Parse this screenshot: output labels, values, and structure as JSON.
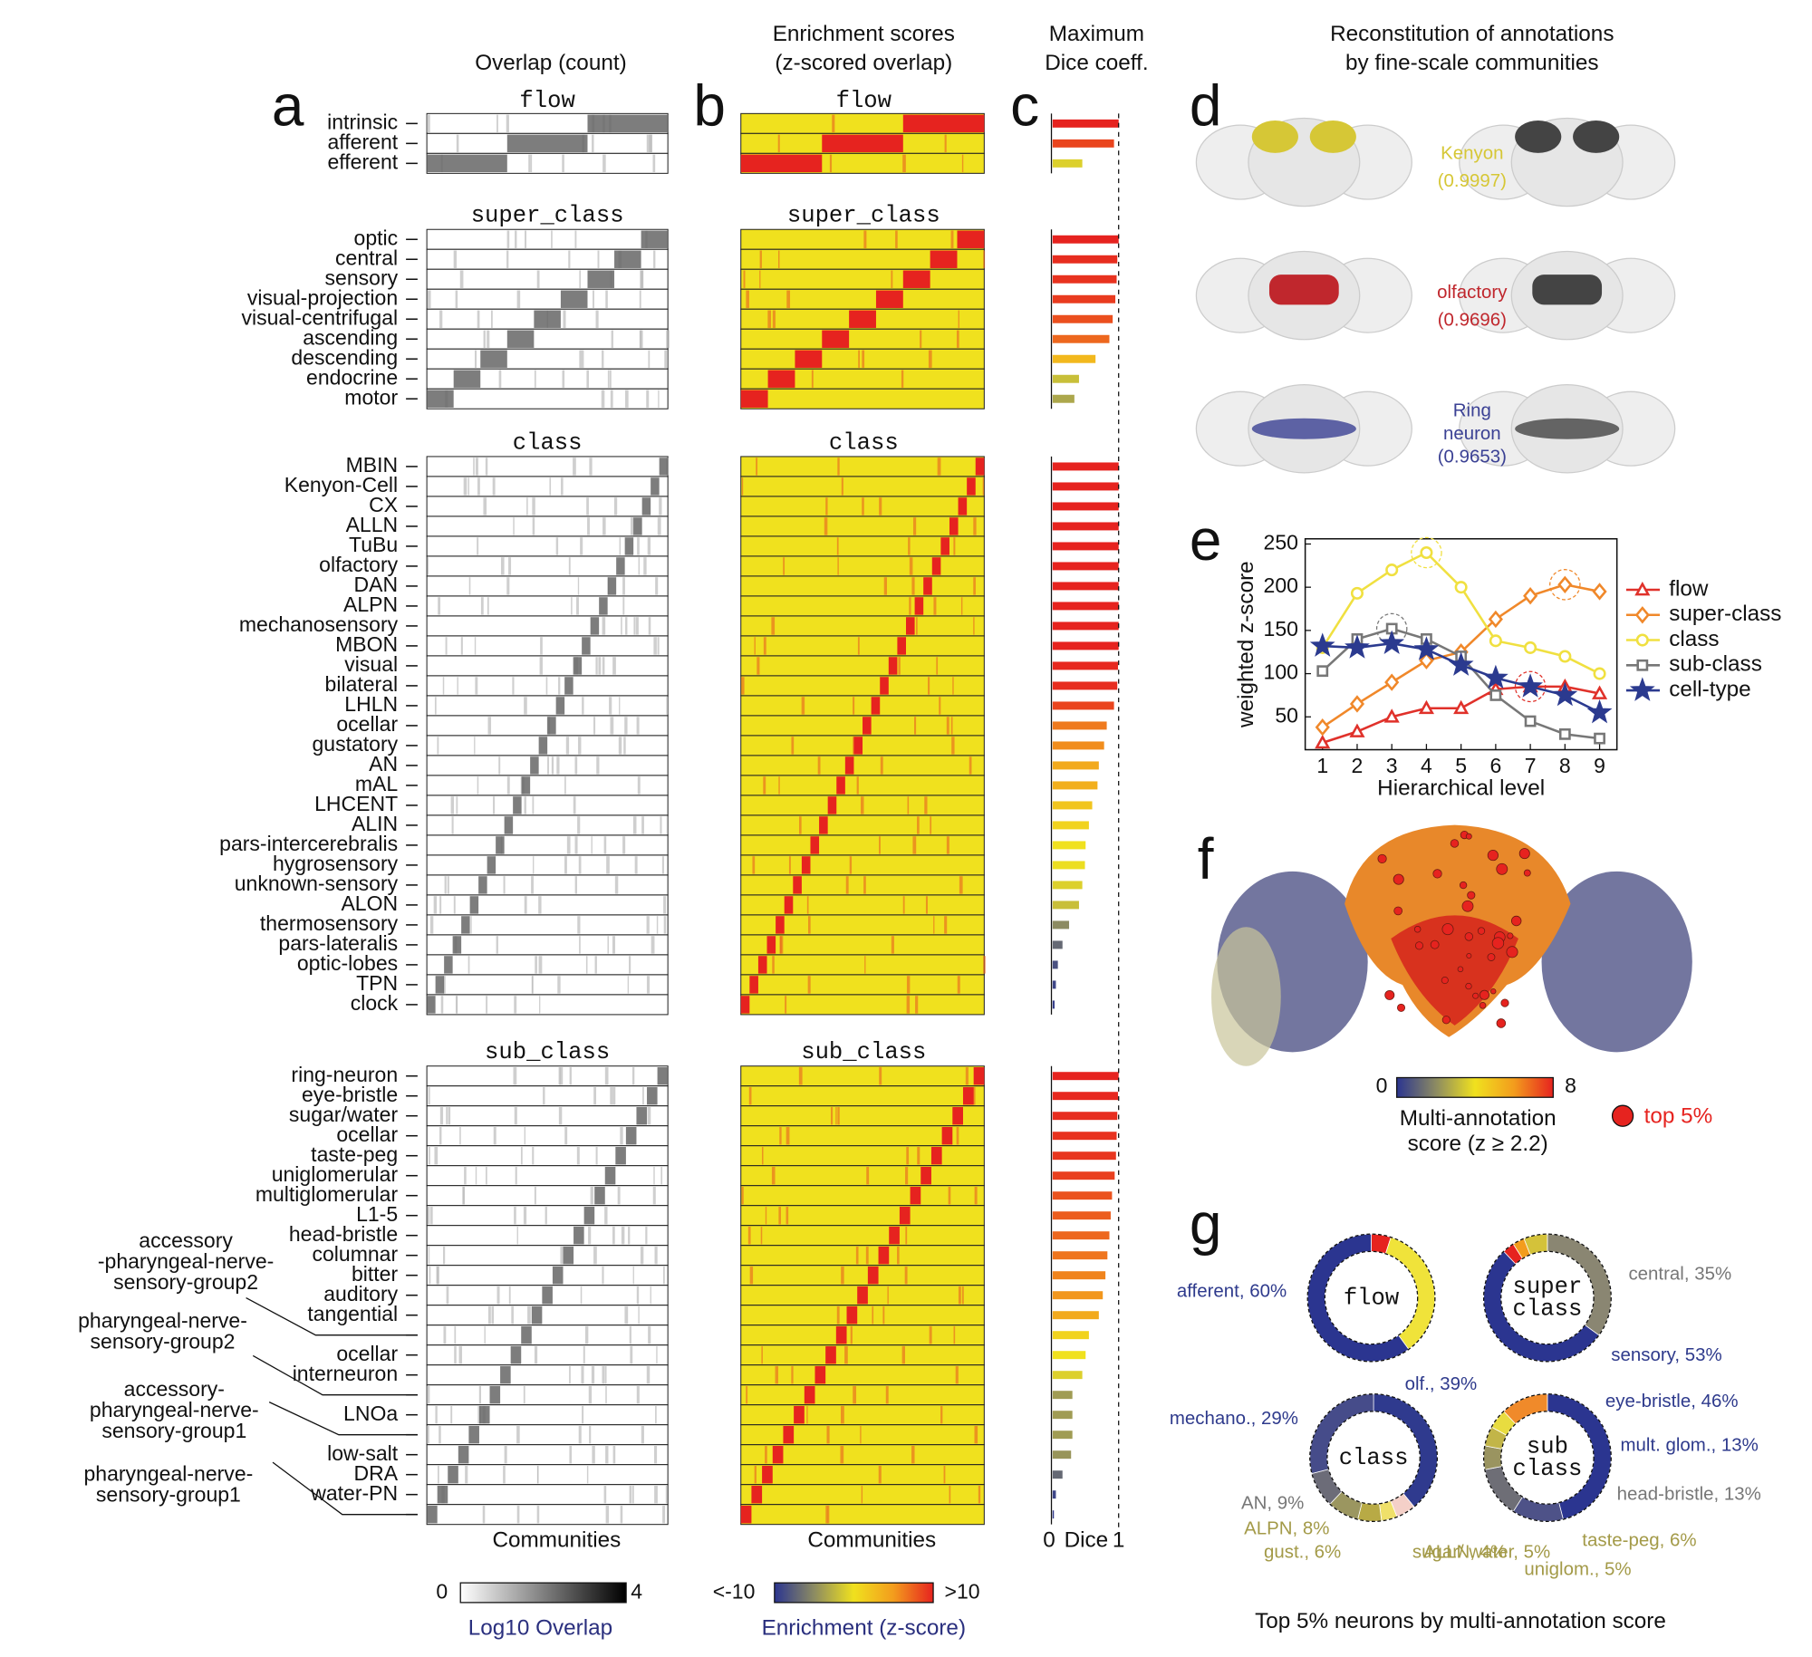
{
  "panel_labels": [
    "a",
    "b",
    "c",
    "d",
    "e",
    "f",
    "g"
  ],
  "headers": {
    "overlap": "Overlap (count)",
    "enrichment": [
      "Enrichment scores",
      "(z-scored overlap)"
    ],
    "dice": [
      "Maximum",
      "Dice coeff."
    ],
    "reconstitution": [
      "Reconstitution of annotations",
      "by fine-scale communities"
    ]
  },
  "sections": [
    {
      "title": "flow",
      "rows": [
        "intrinsic",
        "afferent",
        "efferent"
      ],
      "dice": [
        1.0,
        0.93,
        0.45
      ]
    },
    {
      "title": "super_class",
      "rows": [
        "optic",
        "central",
        "sensory",
        "visual-projection",
        "visual-centrifugal",
        "ascending",
        "descending",
        "endocrine",
        "motor"
      ],
      "dice": [
        1.0,
        0.98,
        0.97,
        0.95,
        0.91,
        0.86,
        0.65,
        0.4,
        0.33
      ]
    },
    {
      "title": "class",
      "rows": [
        "MBIN",
        "Kenyon-Cell",
        "CX",
        "ALLN",
        "TuBu",
        "olfactory",
        "DAN",
        "ALPN",
        "mechanosensory",
        "MBON",
        "visual",
        "bilateral",
        "LHLN",
        "ocellar",
        "gustatory",
        "AN",
        "mAL",
        "LHCENT",
        "ALIN",
        "pars-intercerebralis",
        "hygrosensory",
        "unknown-sensory",
        "ALON",
        "thermosensory",
        "pars-lateralis",
        "optic-lobes",
        "TPN",
        "clock"
      ],
      "dice": [
        1,
        1,
        1,
        1,
        1,
        1,
        1,
        1,
        1,
        1,
        0.99,
        0.98,
        0.93,
        0.82,
        0.78,
        0.7,
        0.68,
        0.6,
        0.55,
        0.5,
        0.49,
        0.45,
        0.4,
        0.25,
        0.15,
        0.08,
        0.05,
        0.03
      ]
    },
    {
      "title": "sub_class",
      "rows": [
        "ring-neuron",
        "eye-bristle",
        "sugar/water",
        "ocellar",
        "taste-peg",
        "uniglomerular",
        "multiglomerular",
        "L1-5",
        "head-bristle",
        "columnar",
        "bitter",
        "auditory",
        "tangential",
        null,
        "ocellar",
        "interneuron",
        null,
        "LNOa",
        null,
        "low-salt",
        "DRA",
        "water-PN",
        null
      ],
      "dice": [
        1,
        0.99,
        0.98,
        0.97,
        0.96,
        0.94,
        0.9,
        0.88,
        0.86,
        0.83,
        0.8,
        0.76,
        0.7,
        0.55,
        0.5,
        0.45,
        0.3,
        0.3,
        0.3,
        0.28,
        0.15,
        0.05,
        0.02
      ],
      "leaders": [
        {
          "lines": [
            "accessory",
            "-pharyngeal-nerve-",
            "sensory-group2"
          ],
          "row": 13
        },
        {
          "lines": [
            "pharyngeal-nerve-",
            "sensory-group2"
          ],
          "row": 16
        },
        {
          "lines": [
            "accessory-",
            "pharyngeal-nerve-",
            "sensory-group1"
          ],
          "row": 18
        },
        {
          "lines": [
            "pharyngeal-nerve-",
            "sensory-group1"
          ],
          "row": 22
        }
      ]
    }
  ],
  "x_labels": {
    "overlap": "Communities",
    "enrichment": "Communities"
  },
  "dice_axis": {
    "ticks": [
      0,
      1
    ],
    "label": "Dice"
  },
  "colormap": [
    "#2b3590",
    "#8c8b62",
    "#f0e11e",
    "#f39c1d",
    "#e6231f"
  ],
  "colorbars": {
    "overlap": {
      "min": 0,
      "max": 4,
      "label": "Log10 Overlap"
    },
    "enrichment": {
      "min": {
        "value": -10,
        "label": "<-10"
      },
      "max": {
        "value": 10,
        "label": ">10"
      },
      "label": "Enrichment (z-score)"
    }
  },
  "brains": [
    {
      "name": [
        "Kenyon"
      ],
      "score": {
        "value": 0.9997,
        "label": "(0.9997)"
      },
      "color": "#d6c736"
    },
    {
      "name": [
        "olfactory"
      ],
      "score": {
        "value": 0.9696,
        "label": "(0.9696)"
      },
      "color": "#c0272d"
    },
    {
      "name": [
        "Ring",
        "neuron"
      ],
      "score": {
        "value": 0.9653,
        "label": "(0.9653)"
      },
      "color": "#3b4194"
    }
  ],
  "chart_data": {
    "type": "line",
    "xlabel": "Hierarchical level",
    "ylabel": "weighted z-score",
    "x": [
      1,
      2,
      3,
      4,
      5,
      6,
      7,
      8,
      9
    ],
    "xlim": [
      0.5,
      9.5
    ],
    "xticks": [
      1,
      2,
      3,
      4,
      5,
      6,
      7,
      8,
      9
    ],
    "ylim": [
      12,
      256
    ],
    "yticks": [
      50,
      100,
      150,
      200,
      250
    ],
    "series": [
      {
        "name": "flow",
        "color": "#e0312a",
        "marker": "triangle",
        "values": [
          20,
          33,
          50,
          60,
          60,
          82,
          85,
          85,
          77
        ],
        "highlight": 6
      },
      {
        "name": "super-class",
        "color": "#f0882a",
        "marker": "diamond",
        "values": [
          38,
          65,
          90,
          115,
          125,
          163,
          190,
          203,
          195
        ],
        "highlight": 7
      },
      {
        "name": "class",
        "color": "#f0e040",
        "marker": "circle",
        "values": [
          130,
          193,
          220,
          240,
          200,
          138,
          130,
          120,
          100
        ],
        "highlight": 3
      },
      {
        "name": "sub-class",
        "color": "#777777",
        "marker": "square",
        "values": [
          103,
          140,
          152,
          140,
          120,
          75,
          45,
          30,
          25
        ],
        "highlight": 2
      },
      {
        "name": "cell-type",
        "color": "#2b3a8f",
        "marker": "star",
        "values": [
          132,
          130,
          135,
          128,
          110,
          95,
          85,
          75,
          55
        ]
      }
    ]
  },
  "score_colorbar": {
    "min": 0,
    "max": 8,
    "label": [
      "Multi-annotation",
      "score (z ≥ 2.2)"
    ],
    "top": "top 5%"
  },
  "donuts": [
    {
      "center": [
        "flow"
      ],
      "segments": [
        {
          "value": 5,
          "color": "#e6231f"
        },
        {
          "value": 35,
          "color": "#f0e33a"
        },
        {
          "value": 60,
          "color": "#2b3590",
          "label": "afferent, 60%"
        }
      ]
    },
    {
      "center": [
        "super",
        "class"
      ],
      "segments": [
        {
          "value": 35,
          "color": "#8a8672",
          "label": "central, 35%"
        },
        {
          "value": 53,
          "color": "#2b3590",
          "label": "sensory, 53%"
        },
        {
          "value": 3,
          "color": "#e6231f"
        },
        {
          "value": 3,
          "color": "#f39c1d"
        },
        {
          "value": 6,
          "color": "#d4c23a"
        }
      ]
    },
    {
      "center": [
        "class"
      ],
      "segments": [
        {
          "value": 39,
          "color": "#2f3a8e",
          "label": "olf., 39%"
        },
        {
          "value": 5,
          "color": "#f4d0c8"
        },
        {
          "value": 4,
          "color": "#efe06a",
          "label": "ALLN, 4%"
        },
        {
          "value": 6,
          "color": "#b8aa45",
          "label": "gust., 6%"
        },
        {
          "value": 8,
          "color": "#9b9660",
          "label": "ALPN, 8%"
        },
        {
          "value": 9,
          "color": "#6c6c78",
          "label": "AN, 9%"
        },
        {
          "value": 29,
          "color": "#464c8a",
          "label": "mechano., 29%"
        }
      ]
    },
    {
      "center": [
        "sub",
        "class"
      ],
      "segments": [
        {
          "value": 46,
          "color": "#2b3590",
          "label": "eye-bristle, 46%"
        },
        {
          "value": 13,
          "color": "#4e5288",
          "label": "mult. glom., 13%"
        },
        {
          "value": 13,
          "color": "#6e6e76",
          "label": "head-bristle, 13%"
        },
        {
          "value": 6,
          "color": "#9a9460",
          "label": "taste-peg, 6%"
        },
        {
          "value": 5,
          "color": "#c2b548",
          "label": "uniglom., 5%"
        },
        {
          "value": 5,
          "color": "#e8dc40",
          "label": "sugar/ water, 5%"
        },
        {
          "value": 12,
          "color": "#f08a2a"
        }
      ]
    }
  ],
  "caption": "Top 5% neurons by multi-annotation score"
}
